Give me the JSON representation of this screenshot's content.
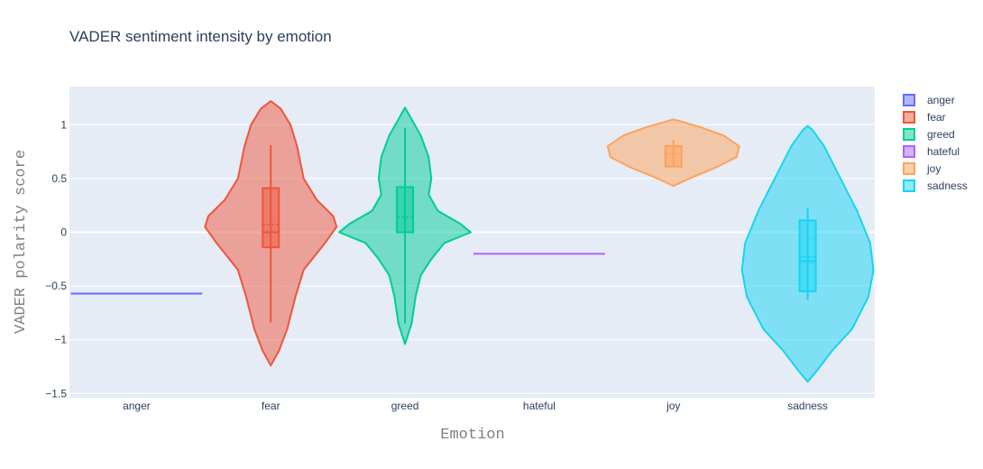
{
  "chart_data": {
    "type": "violin",
    "title": "VADER sentiment intensity by emotion",
    "xlabel": "Emotion",
    "ylabel": "VADER polarity score",
    "ylim": [
      -1.55,
      1.35
    ],
    "yticks": [
      1,
      0.5,
      0,
      -0.5,
      -1,
      -1.5
    ],
    "ytick_labels": [
      "1",
      "0.5",
      "0",
      "−0.5",
      "−1",
      "−1.5"
    ],
    "grid": true,
    "legend_position": "right",
    "categories": [
      "anger",
      "fear",
      "greed",
      "hateful",
      "joy",
      "sadness"
    ],
    "series": [
      {
        "name": "anger",
        "color": "#636efa",
        "min": -0.57,
        "q1": -0.57,
        "median": -0.57,
        "q3": -0.57,
        "max": -0.57,
        "mean": -0.57,
        "violin_extent": [
          -0.57,
          -0.57
        ],
        "density": [
          [
            -0.57,
            0.49
          ]
        ]
      },
      {
        "name": "fear",
        "color": "#ef553b",
        "min": -0.84,
        "q1": -0.14,
        "median": 0.0,
        "q3": 0.41,
        "max": 0.81,
        "mean": 0.07,
        "violin_extent": [
          -1.24,
          1.22
        ],
        "density": [
          [
            -1.24,
            0.0
          ],
          [
            -1.1,
            0.05
          ],
          [
            -0.9,
            0.1
          ],
          [
            -0.6,
            0.15
          ],
          [
            -0.35,
            0.2
          ],
          [
            -0.1,
            0.33
          ],
          [
            0.05,
            0.4
          ],
          [
            0.15,
            0.38
          ],
          [
            0.3,
            0.28
          ],
          [
            0.5,
            0.2
          ],
          [
            0.8,
            0.16
          ],
          [
            1.0,
            0.12
          ],
          [
            1.15,
            0.06
          ],
          [
            1.22,
            0.0
          ]
        ]
      },
      {
        "name": "greed",
        "color": "#00cc96",
        "min": -0.85,
        "q1": 0.0,
        "median": 0.0,
        "q3": 0.42,
        "max": 0.97,
        "mean": 0.14,
        "violin_extent": [
          -1.04,
          1.16
        ],
        "density": [
          [
            -1.04,
            0.0
          ],
          [
            -0.85,
            0.05
          ],
          [
            -0.6,
            0.08
          ],
          [
            -0.4,
            0.12
          ],
          [
            -0.25,
            0.2
          ],
          [
            -0.1,
            0.3
          ],
          [
            0.0,
            0.5
          ],
          [
            0.08,
            0.42
          ],
          [
            0.2,
            0.25
          ],
          [
            0.35,
            0.18
          ],
          [
            0.5,
            0.2
          ],
          [
            0.7,
            0.18
          ],
          [
            0.9,
            0.12
          ],
          [
            1.05,
            0.05
          ],
          [
            1.16,
            0.0
          ]
        ]
      },
      {
        "name": "hateful",
        "color": "#ab63fa",
        "min": -0.2,
        "q1": -0.2,
        "median": -0.2,
        "q3": -0.2,
        "max": -0.2,
        "mean": -0.2,
        "violin_extent": [
          -0.2,
          -0.2
        ],
        "density": [
          [
            -0.2,
            0.49
          ]
        ]
      },
      {
        "name": "joy",
        "color": "#ffa15a",
        "min": 0.61,
        "q1": 0.61,
        "median": 0.8,
        "q3": 0.8,
        "max": 0.86,
        "mean": 0.73,
        "violin_extent": [
          0.43,
          1.05
        ],
        "density": [
          [
            0.43,
            0.0
          ],
          [
            0.5,
            0.12
          ],
          [
            0.6,
            0.32
          ],
          [
            0.7,
            0.48
          ],
          [
            0.8,
            0.5
          ],
          [
            0.9,
            0.38
          ],
          [
            0.98,
            0.2
          ],
          [
            1.05,
            0.0
          ]
        ]
      },
      {
        "name": "sadness",
        "color": "#19d3f3",
        "min": -0.63,
        "q1": -0.55,
        "median": -0.27,
        "q3": 0.11,
        "max": 0.23,
        "mean": -0.23,
        "violin_extent": [
          -1.39,
          0.99
        ],
        "density": [
          [
            -1.39,
            0.0
          ],
          [
            -1.3,
            0.05
          ],
          [
            -1.1,
            0.15
          ],
          [
            -0.9,
            0.27
          ],
          [
            -0.6,
            0.37
          ],
          [
            -0.35,
            0.4
          ],
          [
            -0.1,
            0.38
          ],
          [
            0.2,
            0.3
          ],
          [
            0.5,
            0.2
          ],
          [
            0.8,
            0.1
          ],
          [
            0.95,
            0.03
          ],
          [
            0.99,
            0.0
          ]
        ]
      }
    ]
  }
}
